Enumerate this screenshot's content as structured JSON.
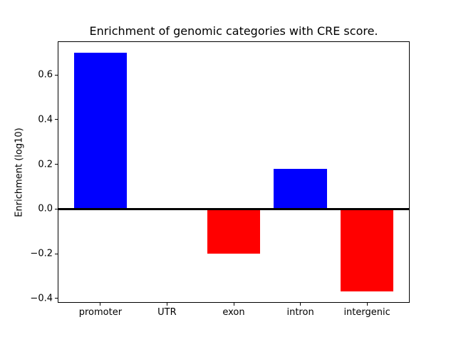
{
  "figure": {
    "background": "#ffffff"
  },
  "chart_data": {
    "type": "bar",
    "title": "Enrichment of genomic categories with CRE score.",
    "xlabel": "",
    "ylabel": "Enrichment (log10)",
    "categories": [
      "promoter",
      "UTR",
      "exon",
      "intron",
      "intergenic"
    ],
    "values": [
      0.7,
      -0.007,
      -0.2,
      0.18,
      -0.37
    ],
    "bar_colors": [
      "#0000ff",
      "#ff0000",
      "#ff0000",
      "#0000ff",
      "#ff0000"
    ],
    "positive_color": "#0000ff",
    "negative_color": "#ff0000",
    "axis_color": "#000000",
    "ylim": [
      -0.42,
      0.75
    ],
    "yticks": [
      -0.4,
      -0.2,
      0.0,
      0.2,
      0.4,
      0.6
    ],
    "ytick_labels": [
      "−0.4",
      "−0.2",
      "0.0",
      "0.2",
      "0.4",
      "0.6"
    ],
    "bar_width_frac": 0.8,
    "grid": false,
    "legend_position": "none",
    "zero_line": true
  }
}
